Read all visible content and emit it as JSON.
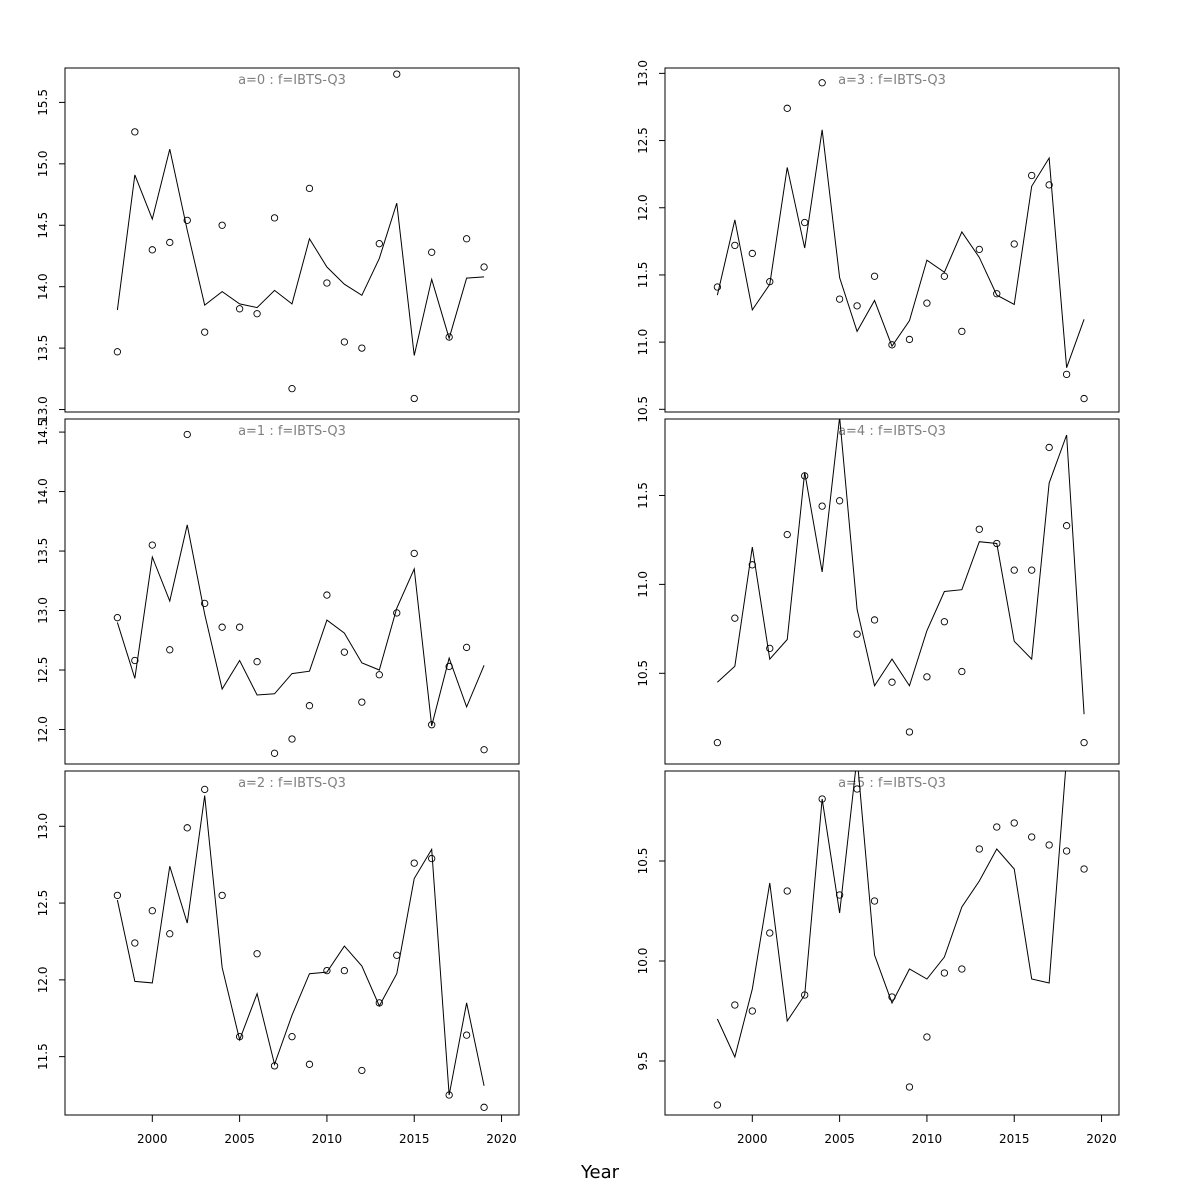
{
  "chart_data": {
    "type": "line",
    "xlabel": "Year",
    "xlim": [
      1995,
      2021
    ],
    "xticks": [
      2000,
      2005,
      2010,
      2015,
      2020
    ],
    "years": [
      1998,
      1999,
      2000,
      2001,
      2002,
      2003,
      2004,
      2005,
      2006,
      2007,
      2008,
      2009,
      2010,
      2011,
      2012,
      2013,
      2014,
      2015,
      2016,
      2017,
      2018,
      2019
    ],
    "style": {
      "line_color": "#000000",
      "point_color": "#000000",
      "title_color": "#808080"
    },
    "panels": [
      {
        "title": "a=0  :  f=IBTS-Q3",
        "ylim": [
          12.98,
          15.78
        ],
        "yticks": [
          13.0,
          13.5,
          14.0,
          14.5,
          15.0,
          15.5
        ],
        "ytick_labels": [
          "13.0",
          "13.5",
          "14.0",
          "14.5",
          "15.0",
          "15.5"
        ],
        "observed": [
          13.47,
          15.26,
          14.3,
          14.36,
          14.54,
          13.63,
          14.5,
          13.82,
          13.78,
          14.56,
          13.17,
          14.8,
          14.03,
          13.55,
          13.5,
          14.35,
          15.73,
          13.09,
          14.28,
          13.59,
          14.39,
          14.16
        ],
        "fitted": [
          13.81,
          14.91,
          14.55,
          15.12,
          14.46,
          13.85,
          13.96,
          13.86,
          13.83,
          13.97,
          13.86,
          14.39,
          14.16,
          14.02,
          13.93,
          14.23,
          14.68,
          13.44,
          14.06,
          13.58,
          14.07,
          14.08
        ]
      },
      {
        "title": "a=1  :  f=IBTS-Q3",
        "ylim": [
          11.71,
          14.61
        ],
        "yticks": [
          12.0,
          12.5,
          13.0,
          13.5,
          14.0,
          14.5
        ],
        "ytick_labels": [
          "12.0",
          "12.5",
          "13.0",
          "13.5",
          "14.0",
          "14.5"
        ],
        "observed": [
          12.94,
          12.58,
          13.55,
          12.67,
          14.48,
          13.06,
          12.86,
          12.86,
          12.57,
          11.8,
          11.92,
          12.2,
          13.13,
          12.65,
          12.23,
          12.46,
          12.98,
          13.48,
          12.04,
          12.53,
          12.69,
          11.83
        ],
        "fitted": [
          12.9,
          12.43,
          13.45,
          13.08,
          13.72,
          12.97,
          12.34,
          12.58,
          12.29,
          12.3,
          12.47,
          12.49,
          12.92,
          12.81,
          12.56,
          12.5,
          13.02,
          13.35,
          12.03,
          12.6,
          12.19,
          12.54
        ]
      },
      {
        "title": "a=2  :  f=IBTS-Q3",
        "ylim": [
          11.12,
          13.36
        ],
        "yticks": [
          11.5,
          12.0,
          12.5,
          13.0
        ],
        "ytick_labels": [
          "11.5",
          "12.0",
          "12.5",
          "13.0"
        ],
        "observed": [
          12.55,
          12.24,
          12.45,
          12.3,
          12.99,
          13.24,
          12.55,
          11.63,
          12.17,
          11.44,
          11.63,
          11.45,
          12.06,
          12.06,
          11.41,
          11.85,
          12.16,
          12.76,
          12.79,
          11.25,
          11.64,
          11.17
        ],
        "fitted": [
          12.52,
          11.99,
          11.98,
          12.74,
          12.37,
          13.2,
          12.08,
          11.61,
          11.91,
          11.45,
          11.77,
          12.04,
          12.05,
          12.22,
          12.09,
          11.83,
          12.04,
          12.66,
          12.85,
          11.25,
          11.85,
          11.31
        ]
      },
      {
        "title": "a=3  :  f=IBTS-Q3",
        "ylim": [
          10.48,
          13.04
        ],
        "yticks": [
          10.5,
          11.0,
          11.5,
          12.0,
          12.5,
          13.0
        ],
        "ytick_labels": [
          "10.5",
          "11.0",
          "11.5",
          "12.0",
          "12.5",
          "13.0"
        ],
        "observed": [
          11.41,
          11.72,
          11.66,
          11.45,
          12.74,
          11.89,
          12.93,
          11.32,
          11.27,
          11.49,
          10.98,
          11.02,
          11.29,
          11.49,
          11.08,
          11.69,
          11.36,
          11.73,
          12.24,
          12.17,
          10.76,
          10.58
        ],
        "fitted": [
          11.35,
          11.91,
          11.24,
          11.43,
          12.3,
          11.7,
          12.58,
          11.48,
          11.08,
          11.31,
          10.97,
          11.16,
          11.61,
          11.52,
          11.82,
          11.63,
          11.35,
          11.28,
          12.16,
          12.37,
          10.81,
          11.17
        ]
      },
      {
        "title": "a=4  :  f=IBTS-Q3",
        "ylim": [
          9.99,
          11.93
        ],
        "yticks": [
          10.5,
          11.0,
          11.5
        ],
        "ytick_labels": [
          "10.5",
          "11.0",
          "11.5"
        ],
        "observed": [
          10.11,
          10.81,
          11.11,
          10.64,
          11.28,
          11.61,
          11.44,
          11.47,
          10.72,
          10.8,
          10.45,
          10.17,
          10.48,
          10.79,
          10.51,
          11.31,
          11.23,
          11.08,
          11.08,
          11.77,
          11.33,
          10.11
        ],
        "fitted": [
          10.45,
          10.54,
          11.21,
          10.58,
          10.69,
          11.63,
          11.07,
          11.94,
          10.86,
          10.43,
          10.58,
          10.43,
          10.74,
          10.96,
          10.97,
          11.24,
          11.23,
          10.68,
          10.58,
          11.57,
          11.84,
          10.27
        ]
      },
      {
        "title": "a=5  :  f=IBTS-Q3",
        "ylim": [
          9.23,
          10.95
        ],
        "yticks": [
          9.5,
          10.0,
          10.5
        ],
        "ytick_labels": [
          "9.5",
          "10.0",
          "10.5"
        ],
        "observed": [
          9.28,
          9.78,
          9.75,
          10.14,
          10.35,
          9.83,
          10.81,
          10.33,
          10.86,
          10.3,
          9.82,
          9.37,
          9.62,
          9.94,
          9.96,
          10.56,
          10.67,
          10.69,
          10.62,
          10.58,
          10.55,
          10.46
        ],
        "fitted": [
          9.71,
          9.52,
          9.86,
          10.39,
          9.7,
          9.83,
          10.81,
          10.24,
          11.02,
          10.03,
          9.79,
          9.96,
          9.91,
          10.02,
          10.27,
          10.4,
          10.56,
          10.46,
          9.91,
          9.89,
          11.02,
          11.1
        ]
      }
    ]
  }
}
